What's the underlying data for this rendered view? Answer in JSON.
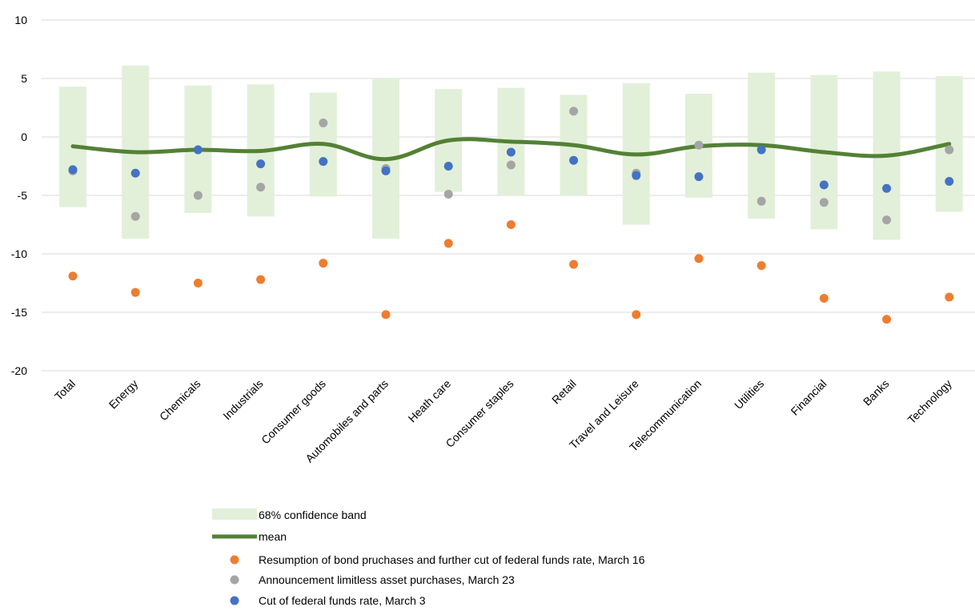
{
  "chart_data": {
    "type": "scatter",
    "categories": [
      "Total",
      "Energy",
      "Chemicals",
      "Industrials",
      "Consumer goods",
      "Automobiles and parts",
      "Heath care",
      "Consumer staples",
      "Retail",
      "Travel and Leisure",
      "Telecommunication",
      "Utilities",
      "Financial",
      "Banks",
      "Technology"
    ],
    "ylim": [
      -20,
      10
    ],
    "yticks": [
      10,
      5,
      0,
      -5,
      -10,
      -15,
      -20
    ],
    "grid": true,
    "legend_position": "bottom-center",
    "band": {
      "name": "68% confidence band",
      "color": "#e2f0d9",
      "upper": [
        4.3,
        6.1,
        4.4,
        4.5,
        3.8,
        5.0,
        4.1,
        4.2,
        3.6,
        4.6,
        3.7,
        5.5,
        5.3,
        5.6,
        5.2
      ],
      "lower": [
        -6.0,
        -8.7,
        -6.5,
        -6.8,
        -5.1,
        -8.7,
        -4.7,
        -5.0,
        -5.0,
        -7.5,
        -5.2,
        -7.0,
        -7.9,
        -8.8,
        -6.4
      ]
    },
    "mean": {
      "name": "mean",
      "color": "#538135",
      "values": [
        -0.8,
        -1.3,
        -1.1,
        -1.2,
        -0.6,
        -1.9,
        -0.3,
        -0.4,
        -0.7,
        -1.5,
        -0.8,
        -0.7,
        -1.3,
        -1.6,
        -0.6
      ]
    },
    "series": [
      {
        "name": "Resumption of bond pruchases and further cut of federal funds rate, March 16",
        "color": "#ed7d31",
        "values": [
          -11.9,
          -13.3,
          -12.5,
          -12.2,
          -10.8,
          -15.2,
          -9.1,
          -7.5,
          -10.9,
          -15.2,
          -10.4,
          -11.0,
          -13.8,
          -15.6,
          -13.7
        ]
      },
      {
        "name": "Announcement limitless asset purchases, March 23",
        "color": "#a5a5a5",
        "values": [
          -2.9,
          -6.8,
          -5.0,
          -4.3,
          1.2,
          -2.7,
          -4.9,
          -2.4,
          2.2,
          -3.1,
          -0.7,
          -5.5,
          -5.6,
          -7.1,
          -1.1
        ]
      },
      {
        "name": "Cut of federal funds rate, March 3",
        "color": "#4472c4",
        "values": [
          -2.8,
          -3.1,
          -1.1,
          -2.3,
          -2.1,
          -2.9,
          -2.5,
          -1.3,
          -2.0,
          -3.3,
          -3.4,
          -1.1,
          -4.1,
          -4.4,
          -3.8
        ]
      }
    ]
  }
}
